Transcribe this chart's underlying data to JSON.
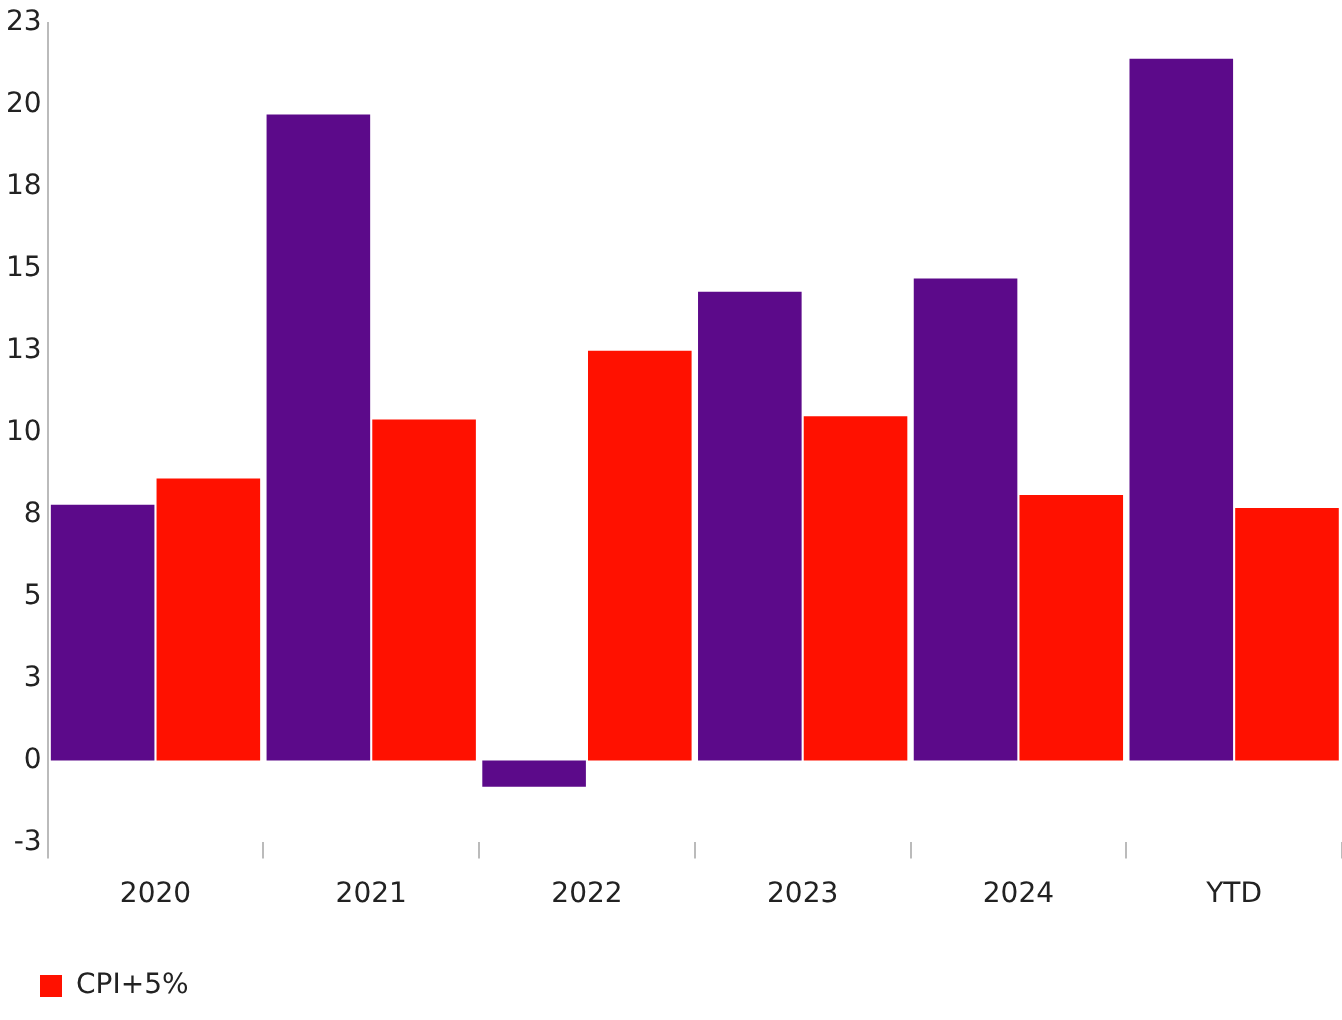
{
  "chart_data": {
    "type": "bar",
    "categories": [
      "2020",
      "2021",
      "2022",
      "2023",
      "2024",
      "YTD"
    ],
    "series": [
      {
        "color": "#5c0a8a",
        "values": [
          7.8,
          19.7,
          -0.8,
          14.3,
          14.7,
          21.4
        ]
      },
      {
        "name": "CPI+5%",
        "color": "#ff1100",
        "values": [
          8.6,
          10.4,
          12.5,
          10.5,
          8.1,
          7.7
        ]
      }
    ],
    "ylim": [
      -2.5,
      22.5
    ],
    "yticks": [
      {
        "value": -2.5,
        "label": "-3"
      },
      {
        "value": 0,
        "label": "0"
      },
      {
        "value": 2.5,
        "label": "3"
      },
      {
        "value": 5,
        "label": "5"
      },
      {
        "value": 7.5,
        "label": "8"
      },
      {
        "value": 10,
        "label": "10"
      },
      {
        "value": 12.5,
        "label": "13"
      },
      {
        "value": 15,
        "label": "15"
      },
      {
        "value": 17.5,
        "label": "18"
      },
      {
        "value": 20,
        "label": "20"
      },
      {
        "value": 22.5,
        "label": "23"
      }
    ],
    "grid": false,
    "legend": "bottom left"
  }
}
